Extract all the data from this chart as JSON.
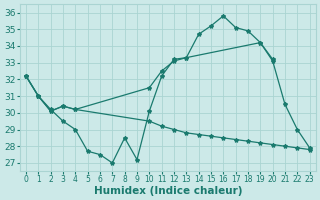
{
  "xlabel": "Humidex (Indice chaleur)",
  "xlim": [
    -0.5,
    23.5
  ],
  "ylim": [
    26.5,
    36.5
  ],
  "yticks": [
    27,
    28,
    29,
    30,
    31,
    32,
    33,
    34,
    35,
    36
  ],
  "xtick_labels": [
    "0",
    "1",
    "2",
    "3",
    "4",
    "5",
    "6",
    "7",
    "8",
    "9",
    "10",
    "11",
    "12",
    "13",
    "14",
    "15",
    "16",
    "17",
    "18",
    "19",
    "20",
    "21",
    "22",
    "23"
  ],
  "bg_color": "#cce9e8",
  "grid_color": "#aad4d2",
  "line_color": "#1a7a6e",
  "series1": [
    32.2,
    31.0,
    30.2,
    29.5,
    29.0,
    27.7,
    27.5,
    27.0,
    28.5,
    27.2,
    30.1,
    32.2,
    33.2,
    33.3,
    34.7,
    35.2,
    35.8,
    35.1,
    34.9,
    34.2,
    33.1,
    30.5,
    29.0,
    27.9
  ],
  "series1_x": [
    0,
    1,
    2,
    3,
    4,
    5,
    6,
    7,
    8,
    9,
    10,
    11,
    12,
    13,
    14,
    15,
    16,
    17,
    18,
    19,
    20,
    21,
    22,
    23
  ],
  "series2_x": [
    0,
    1,
    2,
    3,
    4,
    10,
    11,
    12,
    13,
    19,
    20
  ],
  "series2_y": [
    32.2,
    31.0,
    30.1,
    30.4,
    30.2,
    31.5,
    32.5,
    33.1,
    33.3,
    34.2,
    33.2
  ],
  "series3_x": [
    0,
    1,
    2,
    3,
    4,
    10,
    11,
    12,
    13,
    14,
    15,
    16,
    17,
    18,
    19,
    20,
    21,
    22,
    23
  ],
  "series3_y": [
    32.2,
    31.0,
    30.1,
    30.4,
    30.2,
    29.5,
    29.2,
    29.0,
    28.8,
    28.7,
    28.6,
    28.5,
    28.4,
    28.3,
    28.2,
    28.1,
    28.0,
    27.9,
    27.8
  ]
}
